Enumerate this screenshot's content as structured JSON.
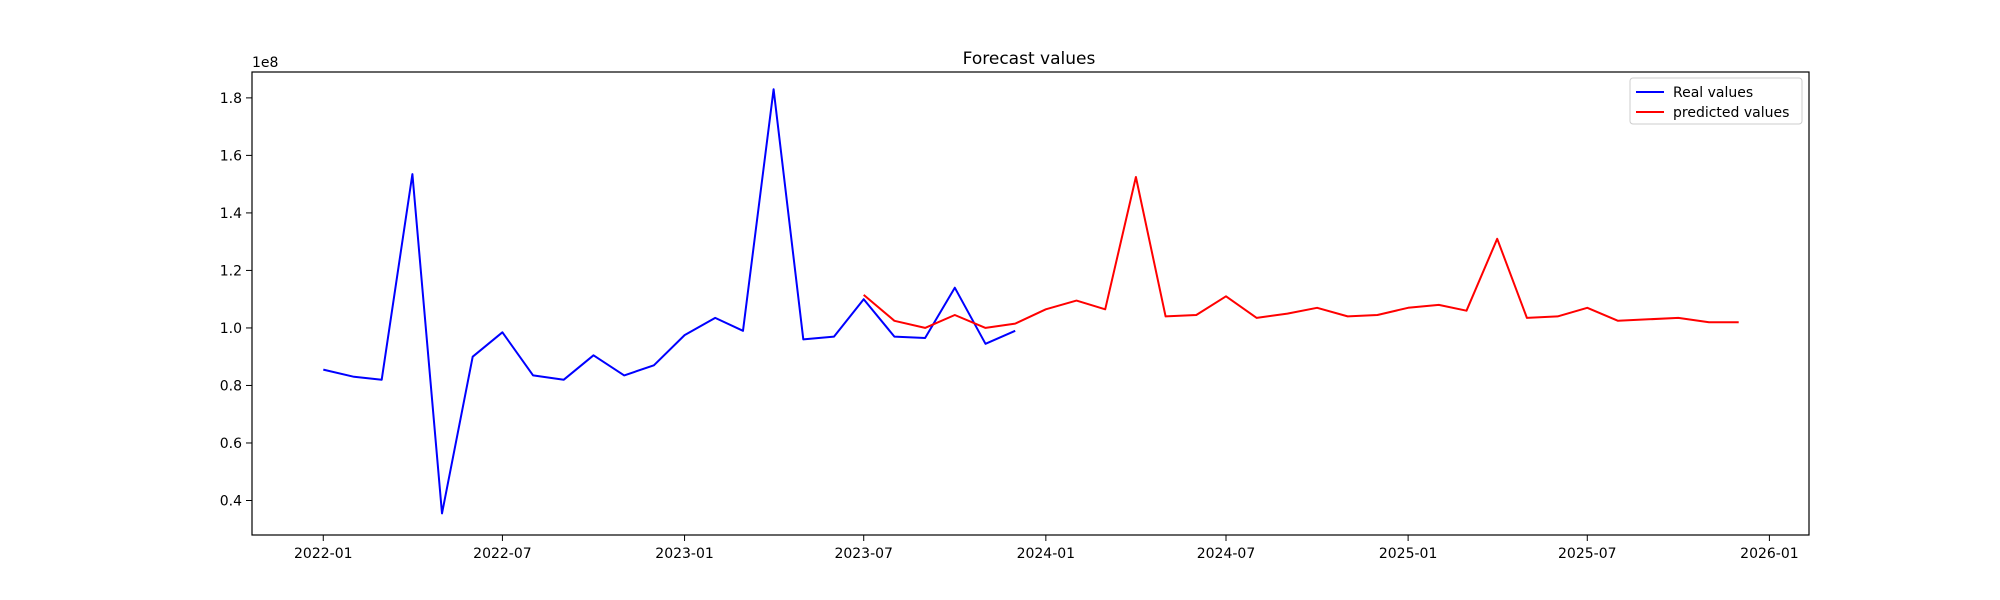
{
  "chart_data": {
    "type": "line",
    "title": "Forecast values",
    "xlabel": "",
    "ylabel": "",
    "y_multiplier_label": "1e8",
    "x_ticks": [
      "2022-01",
      "2022-07",
      "2023-01",
      "2023-07",
      "2024-01",
      "2024-07",
      "2025-01",
      "2025-07",
      "2026-01"
    ],
    "y_ticks": [
      "0.4",
      "0.6",
      "0.8",
      "1.0",
      "1.2",
      "1.4",
      "1.6",
      "1.8"
    ],
    "xlim": [
      "2021-10-21",
      "2026-02-10"
    ],
    "ylim": [
      0.28,
      1.89
    ],
    "legend_position": "top-right",
    "grid": false,
    "series": [
      {
        "name": "Real values",
        "color": "#0000ff",
        "points": [
          [
            "2022-01",
            0.855
          ],
          [
            "2022-02",
            0.83
          ],
          [
            "2022-03",
            0.82
          ],
          [
            "2022-04",
            1.535
          ],
          [
            "2022-05",
            0.355
          ],
          [
            "2022-06",
            0.9
          ],
          [
            "2022-07",
            0.985
          ],
          [
            "2022-08",
            0.835
          ],
          [
            "2022-09",
            0.82
          ],
          [
            "2022-10",
            0.905
          ],
          [
            "2022-11",
            0.835
          ],
          [
            "2022-12",
            0.87
          ],
          [
            "2023-01",
            0.975
          ],
          [
            "2023-02",
            1.035
          ],
          [
            "2023-03",
            0.99
          ],
          [
            "2023-04",
            1.83
          ],
          [
            "2023-05",
            0.96
          ],
          [
            "2023-06",
            0.97
          ],
          [
            "2023-07",
            1.1
          ],
          [
            "2023-08",
            0.97
          ],
          [
            "2023-09",
            0.965
          ],
          [
            "2023-10",
            1.14
          ],
          [
            "2023-11",
            0.945
          ],
          [
            "2023-12",
            0.99
          ]
        ]
      },
      {
        "name": "predicted values",
        "color": "#ff0000",
        "points": [
          [
            "2023-07",
            1.115
          ],
          [
            "2023-08",
            1.025
          ],
          [
            "2023-09",
            1.0
          ],
          [
            "2023-10",
            1.045
          ],
          [
            "2023-11",
            1.0
          ],
          [
            "2023-12",
            1.015
          ],
          [
            "2024-01",
            1.065
          ],
          [
            "2024-02",
            1.095
          ],
          [
            "2024-03",
            1.065
          ],
          [
            "2024-04",
            1.525
          ],
          [
            "2024-05",
            1.04
          ],
          [
            "2024-06",
            1.045
          ],
          [
            "2024-07",
            1.11
          ],
          [
            "2024-08",
            1.035
          ],
          [
            "2024-09",
            1.05
          ],
          [
            "2024-10",
            1.07
          ],
          [
            "2024-11",
            1.04
          ],
          [
            "2024-12",
            1.045
          ],
          [
            "2025-01",
            1.07
          ],
          [
            "2025-02",
            1.08
          ],
          [
            "2025-03",
            1.06
          ],
          [
            "2025-04",
            1.31
          ],
          [
            "2025-05",
            1.035
          ],
          [
            "2025-06",
            1.04
          ],
          [
            "2025-07",
            1.07
          ],
          [
            "2025-08",
            1.025
          ],
          [
            "2025-09",
            1.03
          ],
          [
            "2025-10",
            1.035
          ],
          [
            "2025-11",
            1.02
          ],
          [
            "2025-12",
            1.02
          ]
        ]
      }
    ]
  }
}
